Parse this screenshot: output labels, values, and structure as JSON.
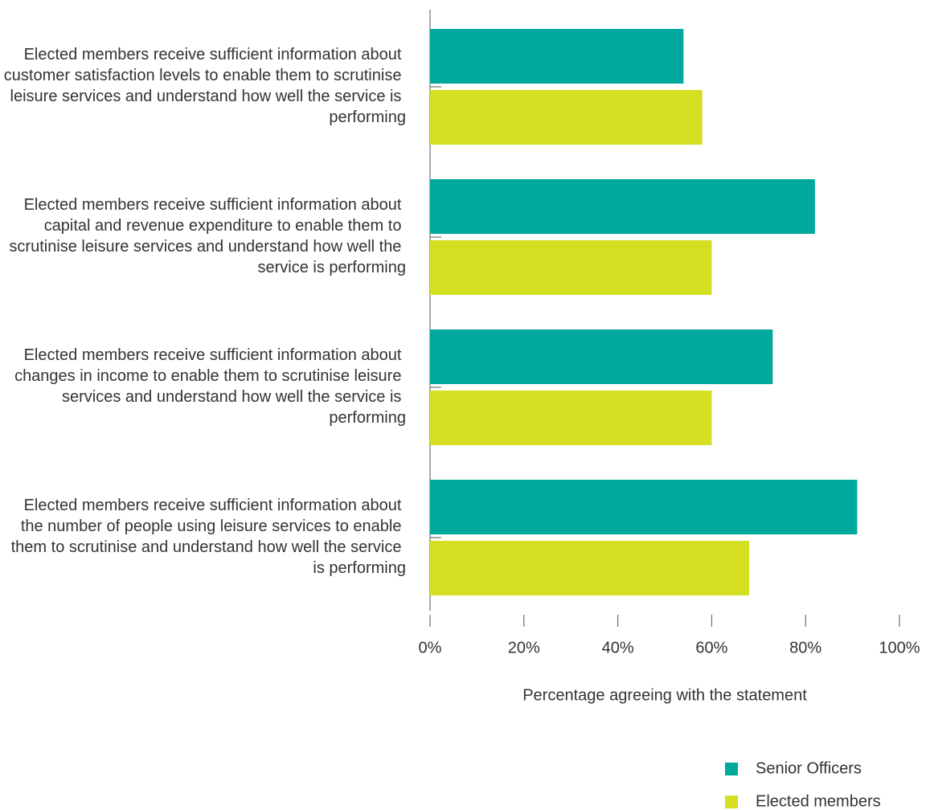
{
  "chart_data": {
    "type": "hbar",
    "categories": [
      "Elected members receive sufficient information about customer satisfaction levels to enable them to scrutinise leisure services and understand how well the service is performing",
      "Elected members receive sufficient information about capital and revenue expenditure to enable them to scrutinise leisure services and understand how well the service is performing",
      "Elected members receive sufficient information about changes in income to enable them to scrutinise leisure services and understand how well the service is performing",
      "Elected members receive sufficient information about the number of people using leisure services to enable them to scrutinise and understand how well the service is performing"
    ],
    "series": [
      {
        "name": "Senior Officers",
        "color": "#00a99d",
        "values": [
          54,
          82,
          73,
          91
        ]
      },
      {
        "name": "Elected members",
        "color": "#d4df21",
        "values": [
          58,
          60,
          60,
          68
        ]
      }
    ],
    "x_label": "Percentage agreeing with the statement",
    "xlim": [
      0,
      100
    ],
    "xticks": [
      {
        "value": 0,
        "label": "0%"
      },
      {
        "value": 20,
        "label": "20%"
      },
      {
        "value": 40,
        "label": "40%"
      },
      {
        "value": 60,
        "label": "60%"
      },
      {
        "value": 80,
        "label": "80%"
      },
      {
        "value": 100,
        "label": "100%"
      }
    ],
    "legend": "bottom-right"
  }
}
